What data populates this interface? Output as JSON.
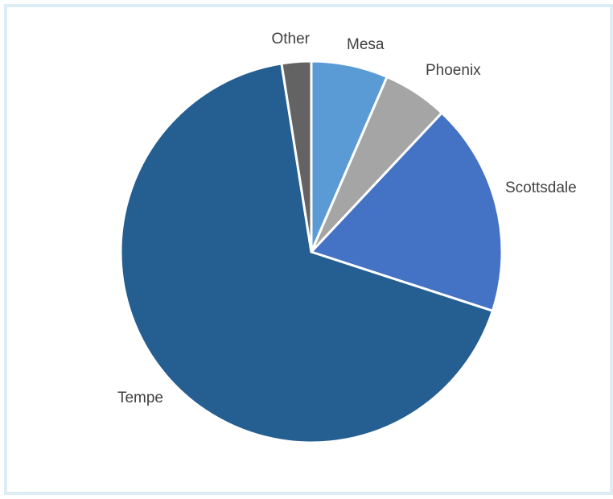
{
  "chart_data": {
    "type": "pie",
    "title": "",
    "legend": "none",
    "slices": [
      {
        "label": "Mesa",
        "value": 6.5,
        "color": "#5b9bd5"
      },
      {
        "label": "Phoenix",
        "value": 5.5,
        "color": "#a5a5a5"
      },
      {
        "label": "Scottsdale",
        "value": 18.0,
        "color": "#4472c4"
      },
      {
        "label": "Tempe",
        "value": 67.5,
        "color": "#255e91"
      },
      {
        "label": "Other",
        "value": 2.5,
        "color": "#636363"
      }
    ]
  }
}
